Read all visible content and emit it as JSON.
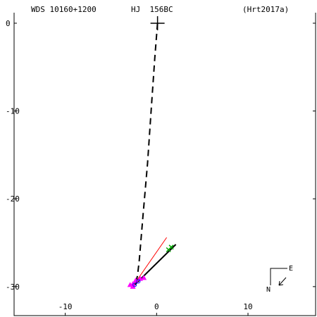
{
  "header": {
    "wds": "WDS 10160+1200",
    "discoverer": "HJ  156BC",
    "reference": "(Hrt2017a)"
  },
  "compass": {
    "north": "N",
    "east": "E"
  },
  "chart_data": {
    "type": "scatter",
    "title": "",
    "xlabel": "",
    "ylabel": "",
    "xlim": [
      -15.6,
      17.4
    ],
    "ylim": [
      -33.3,
      1.2
    ],
    "x_ticks": [
      -10,
      0,
      10
    ],
    "y_ticks": [
      0,
      -10,
      -20,
      -30
    ],
    "grid": false,
    "primary": {
      "marker": "plus",
      "x": 0.1,
      "y": 0.0
    },
    "series": [
      {
        "style": "dashed-line",
        "color": "#000000",
        "points": [
          [
            0.1,
            0.0
          ],
          [
            -0.2,
            -4.0
          ],
          [
            -0.6,
            -10.0
          ],
          [
            -1.0,
            -16.0
          ],
          [
            -1.5,
            -22.0
          ],
          [
            -1.9,
            -27.0
          ],
          [
            -2.1,
            -28.8
          ],
          [
            -2.3,
            -29.6
          ]
        ]
      },
      {
        "style": "solid-line",
        "color": "#000000",
        "points": [
          [
            -2.5,
            -29.9
          ],
          [
            2.1,
            -25.2
          ]
        ]
      },
      {
        "style": "solid-line",
        "color": "#ff0000",
        "points": [
          [
            -2.7,
            -30.1
          ],
          [
            1.1,
            -24.4
          ]
        ]
      },
      {
        "style": "triangles",
        "color": "#ff00ff",
        "points": [
          [
            -2.6,
            -29.7
          ],
          [
            -2.3,
            -29.3
          ],
          [
            -1.8,
            -29.1
          ],
          [
            -1.4,
            -29.0
          ],
          [
            -2.9,
            -29.8
          ],
          [
            -2.6,
            -30.0
          ]
        ]
      },
      {
        "style": "crosses",
        "color": "#00aa00",
        "points": [
          [
            1.3,
            -25.8
          ],
          [
            1.6,
            -25.5
          ]
        ]
      },
      {
        "style": "open-circles",
        "color": "#0000ff",
        "points": [
          [
            -2.4,
            -29.8
          ],
          [
            -2.0,
            -29.4
          ]
        ]
      }
    ]
  }
}
